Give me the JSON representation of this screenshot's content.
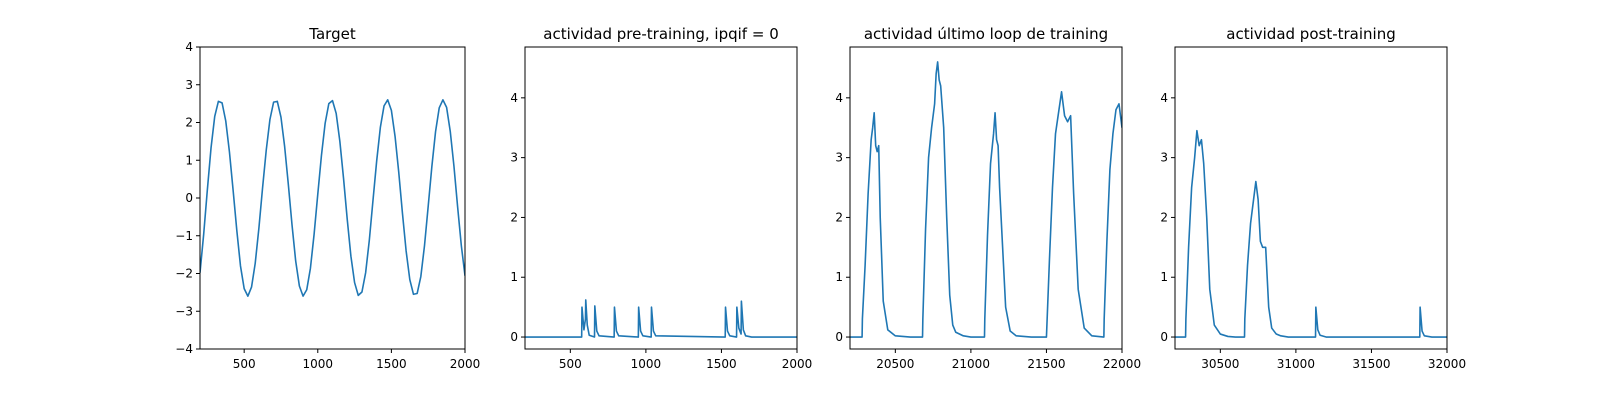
{
  "chart_data": [
    {
      "type": "line",
      "title": "Target",
      "xlim": [
        200,
        2000
      ],
      "ylim": [
        -4,
        4
      ],
      "xticks": [
        500,
        1000,
        1500,
        2000
      ],
      "yticks": [
        -4,
        -3,
        -2,
        -1,
        0,
        1,
        2,
        3,
        4
      ],
      "xtick_labels": [
        "500",
        "1000",
        "1500",
        "2000"
      ],
      "ytick_labels": [
        "−4",
        "−3",
        "−2",
        "−1",
        "0",
        "1",
        "2",
        "3",
        "4"
      ],
      "color": "#1f77b4",
      "series": [
        {
          "values_x": [
            200,
            225,
            250,
            275,
            300,
            325,
            350,
            375,
            400,
            425,
            450,
            475,
            500,
            525,
            550,
            575,
            600,
            625,
            650,
            675,
            700,
            725,
            750,
            775,
            800,
            825,
            850,
            875,
            900,
            925,
            950,
            975,
            1000,
            1025,
            1050,
            1075,
            1100,
            1125,
            1150,
            1175,
            1200,
            1225,
            1250,
            1275,
            1300,
            1325,
            1350,
            1375,
            1400,
            1425,
            1450,
            1475,
            1500,
            1525,
            1550,
            1575,
            1600,
            1625,
            1650,
            1675,
            1700,
            1725,
            1750,
            1775,
            1800,
            1825,
            1850,
            1875,
            1900,
            1925,
            1950,
            1975,
            2000
          ],
          "values_y": [
            -1.98,
            -0.96,
            0.22,
            1.33,
            2.16,
            2.56,
            2.52,
            2.04,
            1.22,
            0.2,
            -0.86,
            -1.8,
            -2.4,
            -2.6,
            -2.36,
            -1.73,
            -0.8,
            0.27,
            1.27,
            2.08,
            2.54,
            2.56,
            2.14,
            1.36,
            0.36,
            -0.71,
            -1.67,
            -2.33,
            -2.6,
            -2.43,
            -1.86,
            -0.96,
            0.1,
            1.13,
            1.98,
            2.5,
            2.58,
            2.24,
            1.5,
            0.52,
            -0.56,
            -1.54,
            -2.24,
            -2.58,
            -2.49,
            -1.98,
            -1.12,
            -0.06,
            0.98,
            1.87,
            2.44,
            2.6,
            2.32,
            1.63,
            0.68,
            -0.4,
            -1.4,
            -2.16,
            -2.55,
            -2.53,
            -2.08,
            -1.26,
            -0.22,
            0.84,
            1.76,
            2.39,
            2.6,
            2.4,
            1.76,
            0.84,
            -0.24,
            -1.26,
            -2.06
          ]
        }
      ]
    },
    {
      "type": "line",
      "title": "actividad pre-training, ipqif = 0",
      "xlim": [
        200,
        2000
      ],
      "ylim": [
        -0.2,
        4.85
      ],
      "xticks": [
        500,
        1000,
        1500,
        2000
      ],
      "yticks": [
        0,
        1,
        2,
        3,
        4
      ],
      "xtick_labels": [
        "500",
        "1000",
        "1500",
        "2000"
      ],
      "ytick_labels": [
        "0",
        "1",
        "2",
        "3",
        "4"
      ],
      "color": "#1f77b4",
      "series": [
        {
          "values_x": [
            200,
            575,
            577,
            590,
            600,
            602,
            612,
            625,
            660,
            662,
            675,
            690,
            790,
            792,
            805,
            820,
            950,
            952,
            965,
            980,
            1035,
            1037,
            1050,
            1065,
            1525,
            1527,
            1540,
            1555,
            1600,
            1602,
            1615,
            1630,
            1632,
            1645,
            1660,
            1700,
            2000
          ],
          "values_y": [
            0,
            0,
            0.5,
            0.12,
            0.3,
            0.62,
            0.2,
            0.03,
            0,
            0.52,
            0.1,
            0.02,
            0,
            0.5,
            0.1,
            0.02,
            0,
            0.5,
            0.1,
            0.02,
            0,
            0.5,
            0.1,
            0.02,
            0,
            0.5,
            0.1,
            0.02,
            0,
            0.5,
            0.15,
            0.05,
            0.6,
            0.12,
            0.02,
            0,
            0
          ]
        }
      ]
    },
    {
      "type": "line",
      "title": "actividad último loop de training",
      "xlim": [
        20200,
        22000
      ],
      "ylim": [
        -0.2,
        4.85
      ],
      "xticks": [
        20500,
        21000,
        21500,
        22000
      ],
      "yticks": [
        0,
        1,
        2,
        3,
        4
      ],
      "xtick_labels": [
        "20500",
        "21000",
        "21500",
        "22000"
      ],
      "ytick_labels": [
        "0",
        "1",
        "2",
        "3",
        "4"
      ],
      "color": "#1f77b4",
      "series": [
        {
          "values_x": [
            20200,
            20280,
            20282,
            20300,
            20320,
            20340,
            20350,
            20360,
            20370,
            20380,
            20390,
            20400,
            20420,
            20450,
            20500,
            20600,
            20680,
            20682,
            20700,
            20720,
            20740,
            20760,
            20770,
            20780,
            20790,
            20800,
            20820,
            20840,
            20860,
            20880,
            20900,
            20950,
            21000,
            21090,
            21092,
            21110,
            21130,
            21150,
            21160,
            21170,
            21180,
            21190,
            21210,
            21230,
            21260,
            21300,
            21400,
            21500,
            21520,
            21540,
            21560,
            21580,
            21600,
            21620,
            21640,
            21660,
            21680,
            21710,
            21750,
            21800,
            21880,
            21882,
            21900,
            21920,
            21940,
            21960,
            21980,
            22000
          ],
          "values_y": [
            0,
            0,
            0.3,
            1.2,
            2.4,
            3.3,
            3.5,
            3.75,
            3.2,
            3.1,
            3.2,
            2.0,
            0.6,
            0.12,
            0.02,
            0,
            0,
            0.3,
            1.8,
            3.0,
            3.5,
            3.9,
            4.4,
            4.6,
            4.3,
            4.2,
            3.5,
            2.0,
            0.7,
            0.2,
            0.08,
            0.02,
            0,
            0,
            0.3,
            1.7,
            2.9,
            3.4,
            3.75,
            3.3,
            3.2,
            2.5,
            1.5,
            0.5,
            0.1,
            0.02,
            0,
            0,
            1.3,
            2.5,
            3.4,
            3.75,
            4.1,
            3.7,
            3.6,
            3.7,
            2.4,
            0.8,
            0.15,
            0.02,
            0,
            0.3,
            1.6,
            2.8,
            3.4,
            3.8,
            3.9,
            3.5
          ]
        }
      ]
    },
    {
      "type": "line",
      "title": "actividad post-training",
      "xlim": [
        30200,
        32000
      ],
      "ylim": [
        -0.2,
        4.85
      ],
      "xticks": [
        30500,
        31000,
        31500,
        32000
      ],
      "yticks": [
        0,
        1,
        2,
        3,
        4
      ],
      "xtick_labels": [
        "30500",
        "31000",
        "31500",
        "32000"
      ],
      "ytick_labels": [
        "0",
        "1",
        "2",
        "3",
        "4"
      ],
      "color": "#1f77b4",
      "series": [
        {
          "values_x": [
            30200,
            30270,
            30272,
            30290,
            30310,
            30330,
            30345,
            30360,
            30375,
            30390,
            30410,
            30430,
            30460,
            30500,
            30550,
            30600,
            30660,
            30662,
            30680,
            30700,
            30720,
            30735,
            30750,
            30765,
            30780,
            30800,
            30820,
            30840,
            30870,
            30900,
            30950,
            31000,
            31130,
            31132,
            31145,
            31160,
            31200,
            31820,
            31822,
            31835,
            31850,
            31900,
            32000
          ],
          "values_y": [
            0,
            0,
            0.3,
            1.5,
            2.5,
            3.0,
            3.45,
            3.2,
            3.3,
            2.9,
            2.0,
            0.8,
            0.2,
            0.05,
            0.01,
            0,
            0,
            0.3,
            1.2,
            1.9,
            2.3,
            2.6,
            2.3,
            1.6,
            1.5,
            1.5,
            0.5,
            0.15,
            0.05,
            0.02,
            0,
            0,
            0,
            0.5,
            0.12,
            0.03,
            0,
            0,
            0.5,
            0.1,
            0.02,
            0,
            0
          ]
        }
      ]
    }
  ]
}
